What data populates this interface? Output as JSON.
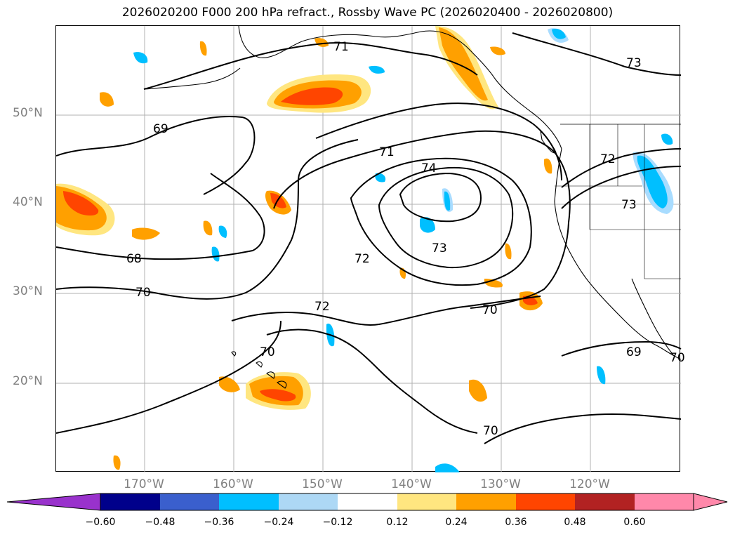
{
  "title": "2026020200 F000 200 hPa refract., Rossby Wave PC (2026020400 - 2026020800)",
  "map": {
    "lat_labels": [
      "50°N",
      "40°N",
      "30°N",
      "20°N"
    ],
    "lon_labels": [
      "170°W",
      "160°W",
      "150°W",
      "140°W",
      "130°W",
      "120°W"
    ],
    "contour_labels": [
      "71",
      "73",
      "69",
      "71",
      "74",
      "72",
      "73",
      "68",
      "72",
      "70",
      "72",
      "73",
      "70",
      "70",
      "69",
      "70",
      "70"
    ],
    "colors": {
      "contour": "#000000",
      "grid": "#b0b0b0",
      "coast": "#000000",
      "pos_level_1": "#ffe680",
      "pos_level_2": "#ffa000",
      "pos_level_3": "#ff4500",
      "neg_level_1": "#a8dcff",
      "neg_level_2": "#00bfff",
      "neg_level_3": "#3a62d0"
    }
  },
  "colorbar": {
    "ticks": [
      "−0.60",
      "−0.48",
      "−0.36",
      "−0.24",
      "−0.12",
      "0.12",
      "0.24",
      "0.36",
      "0.48",
      "0.60"
    ],
    "segment_colors": [
      "#9932cc",
      "#00008b",
      "#3a5fcd",
      "#00bfff",
      "#add8f5",
      "#ffffff",
      "#ffe680",
      "#ffa000",
      "#ff4500",
      "#b22222",
      "#ff88aa",
      "#ff88aa"
    ]
  }
}
